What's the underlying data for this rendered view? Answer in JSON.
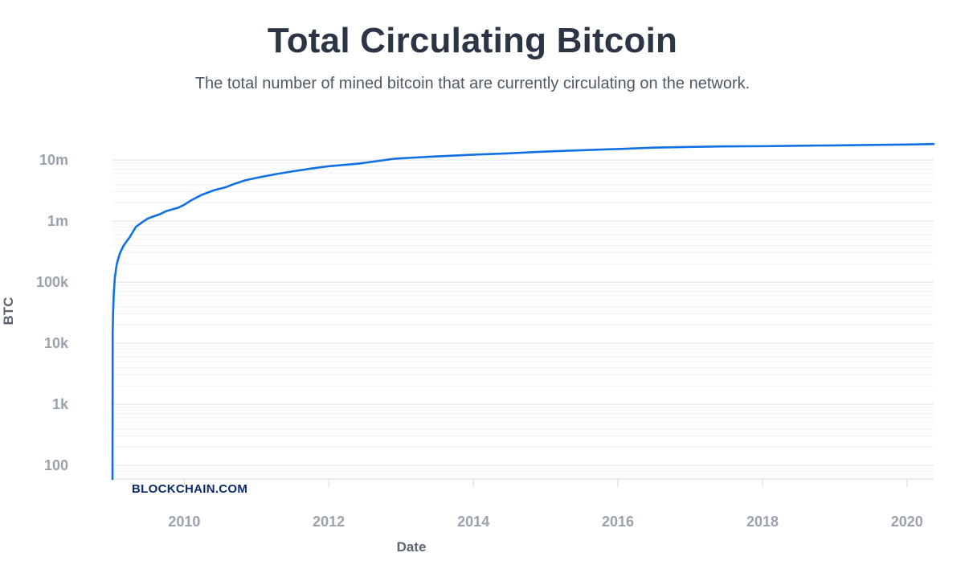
{
  "header": {
    "title": "Total Circulating Bitcoin",
    "subtitle": "The total number of mined bitcoin that are currently circulating on the network."
  },
  "brand": {
    "label": "BLOCKCHAIN.COM"
  },
  "colors": {
    "line": "#1170e3",
    "grid": "#eceef1",
    "axis": "#e2e5ea",
    "text": "#2b3546"
  },
  "chart_data": {
    "type": "line",
    "title": "Total Circulating Bitcoin",
    "subtitle": "The total number of mined bitcoin that are currently circulating on the network.",
    "xlabel": "Date",
    "ylabel": "BTC",
    "y_scale": "log",
    "grid": true,
    "x_ticks": [
      2010,
      2012,
      2014,
      2016,
      2018,
      2020
    ],
    "x_tick_labels": [
      "2010",
      "2012",
      "2014",
      "2016",
      "2018",
      "2020"
    ],
    "y_ticks": [
      100,
      1000,
      10000,
      100000,
      1000000,
      10000000
    ],
    "y_tick_labels": [
      "100",
      "1k",
      "10k",
      "100k",
      "1m",
      "10m"
    ],
    "xlim": [
      "2009-01-03",
      "2020-05-15"
    ],
    "ylim": [
      50,
      22000000
    ],
    "series": [
      {
        "x": [
          "2009-01-03",
          "2009-01-04",
          "2009-01-06",
          "2009-01-09",
          "2009-01-15",
          "2009-01-25",
          "2009-02-10",
          "2009-03-01",
          "2009-04-01",
          "2009-05-01",
          "2009-06-01",
          "2009-07-01",
          "2009-08-01",
          "2009-09-01",
          "2009-10-01",
          "2009-11-01",
          "2009-12-01",
          "2010-01-01",
          "2010-02-01",
          "2010-03-01",
          "2010-04-01",
          "2010-06-01",
          "2010-08-01",
          "2010-09-01",
          "2010-11-01",
          "2011-01-01",
          "2011-04-01",
          "2011-07-01",
          "2011-10-01",
          "2012-01-01",
          "2012-06-01",
          "2012-12-01",
          "2013-06-01",
          "2014-01-01",
          "2014-06-01",
          "2015-01-01",
          "2015-06-01",
          "2016-01-01",
          "2016-07-01",
          "2017-01-01",
          "2017-06-01",
          "2018-01-01",
          "2018-06-01",
          "2019-01-01",
          "2019-06-01",
          "2020-01-01",
          "2020-05-15"
        ],
        "y": [
          50,
          15000,
          30000,
          60000,
          120000,
          200000,
          300000,
          400000,
          550000,
          800000,
          950000,
          1100000,
          1200000,
          1300000,
          1450000,
          1550000,
          1650000,
          1850000,
          2150000,
          2400000,
          2700000,
          3200000,
          3600000,
          3950000,
          4600000,
          5100000,
          5800000,
          6500000,
          7200000,
          7900000,
          8700000,
          10500000,
          11300000,
          12200000,
          12700000,
          13700000,
          14300000,
          15100000,
          15900000,
          16350000,
          16650000,
          16800000,
          17050000,
          17300000,
          17550000,
          17900000,
          18200000
        ]
      }
    ]
  }
}
